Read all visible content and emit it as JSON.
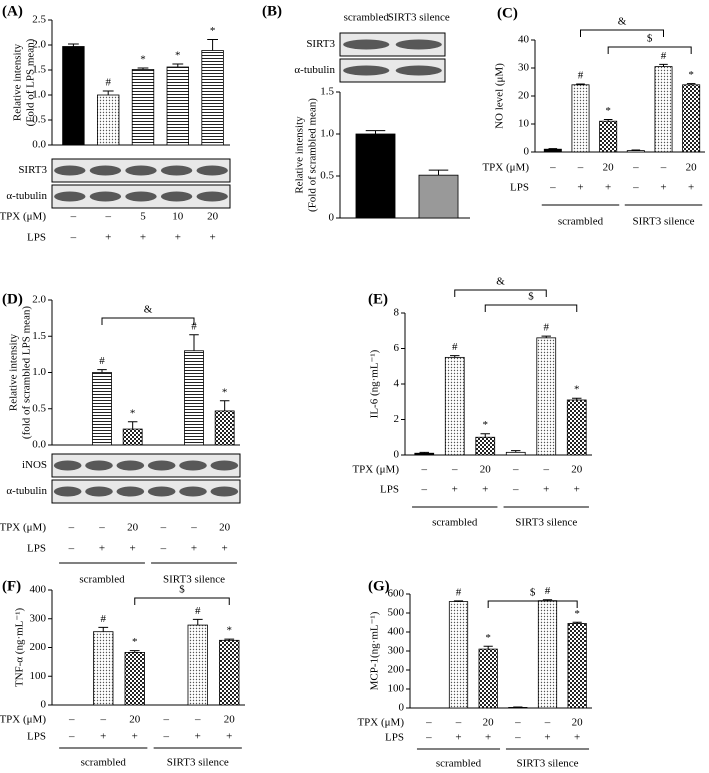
{
  "chart_data": [
    {
      "type": "bar",
      "panel": "(A)",
      "ylabel": [
        "Relative intensity",
        "(Fold of LPS mean)"
      ],
      "values": [
        1.97,
        1.0,
        1.51,
        1.56,
        1.89
      ],
      "errors": [
        0.05,
        0.08,
        0.03,
        0.06,
        0.22
      ],
      "annotations": [
        null,
        "#",
        "*",
        "*",
        "*"
      ],
      "fills": [
        "black",
        "dots",
        "lines",
        "lines",
        "lines"
      ],
      "ylim": [
        0,
        2.5
      ],
      "yticks": [
        {
          "value": 0,
          "label": "0.0"
        },
        0.5,
        {
          "value": 1,
          "label": "1.0"
        },
        1.5,
        {
          "value": 2,
          "label": "2.0"
        },
        2.5
      ],
      "blots": [
        "SIRT3",
        "α-tubulin"
      ],
      "conditions": [
        {
          "label": "TPX (μM)",
          "values": [
            "–",
            "–",
            "5",
            "10",
            "20"
          ]
        },
        {
          "label": "LPS",
          "values": [
            "–",
            "+",
            "+",
            "+",
            "+"
          ]
        }
      ]
    },
    {
      "type": "bar",
      "panel": "(B)",
      "ylabel": [
        "Relative intensity",
        "(Fold of scrambled mean)"
      ],
      "values": [
        1.0,
        0.51
      ],
      "errors": [
        0.04,
        0.06
      ],
      "fills": [
        "black",
        "gray"
      ],
      "ylim": [
        0,
        1.5
      ],
      "yticks": [
        0,
        0.5,
        {
          "value": 1,
          "label": "1.0"
        },
        1.5
      ],
      "blot_header": [
        "scrambled",
        "SIRT3 silence"
      ],
      "blots": [
        "SIRT3",
        "α-tubulin"
      ]
    },
    {
      "type": "bar",
      "panel": "(C)",
      "ylabel": [
        "NO level (μM)"
      ],
      "values": [
        1,
        24,
        11,
        0.5,
        30.5,
        24
      ],
      "errors": [
        0.2,
        0.3,
        0.6,
        0.2,
        0.8,
        0.4
      ],
      "annotations": [
        null,
        "#",
        "*",
        null,
        "#",
        "*"
      ],
      "fills": [
        "black",
        "dots",
        "check",
        "white",
        "dots",
        "check"
      ],
      "ylim": [
        0,
        40
      ],
      "yticks": [
        0,
        10,
        20,
        30,
        40
      ],
      "brackets": [
        {
          "label": "&",
          "bars": [
            1,
            4
          ]
        },
        {
          "label": "$",
          "bars": [
            2,
            5
          ]
        }
      ],
      "conditions": [
        {
          "label": "TPX (μM)",
          "values": [
            "–",
            "–",
            "20",
            "–",
            "–",
            "20"
          ]
        },
        {
          "label": "LPS",
          "values": [
            "–",
            "+",
            "+",
            "–",
            "+",
            "+"
          ]
        }
      ],
      "groups": [
        "scrambled",
        "SIRT3 silence"
      ]
    },
    {
      "type": "bar",
      "panel": "(D)",
      "ylabel": [
        "Relative intensity",
        "(fold of scrambled LPS mean)"
      ],
      "values": [
        0,
        1.0,
        0.22,
        0,
        1.3,
        0.47
      ],
      "errors": [
        null,
        0.04,
        0.1,
        null,
        0.22,
        0.14
      ],
      "annotations": [
        null,
        "#",
        "*",
        null,
        "#",
        "*"
      ],
      "fills": [
        "white",
        "lines",
        "check",
        "white",
        "lines",
        "check"
      ],
      "ylim": [
        0,
        2
      ],
      "yticks": [
        {
          "value": 0,
          "label": "0.0"
        },
        0.5,
        {
          "value": 1,
          "label": "1.0"
        },
        1.5,
        {
          "value": 2,
          "label": "2.0"
        }
      ],
      "brackets": [
        {
          "label": "&",
          "bars": [
            1,
            4
          ]
        }
      ],
      "blots": [
        "iNOS",
        "α-tubulin"
      ],
      "conditions": [
        {
          "label": "TPX (μM)",
          "values": [
            "–",
            "–",
            "20",
            "–",
            "–",
            "20"
          ]
        },
        {
          "label": "LPS",
          "values": [
            "–",
            "+",
            "+",
            "–",
            "+",
            "+"
          ]
        }
      ],
      "groups": [
        "scrambled",
        "SIRT3 silence"
      ]
    },
    {
      "type": "bar",
      "panel": "(E)",
      "ylabel": [
        "IL-6 (ng·mL⁻¹)"
      ],
      "values": [
        0.1,
        5.5,
        1.0,
        0.15,
        6.6,
        3.1
      ],
      "errors": [
        0.05,
        0.1,
        0.2,
        0.1,
        0.1,
        0.1
      ],
      "annotations": [
        null,
        "#",
        "*",
        null,
        "#",
        "*"
      ],
      "fills": [
        "black",
        "dots",
        "check",
        "white",
        "dots",
        "check"
      ],
      "ylim": [
        0,
        8
      ],
      "yticks": [
        0,
        2,
        4,
        6,
        8
      ],
      "brackets": [
        {
          "label": "&",
          "bars": [
            1,
            4
          ]
        },
        {
          "label": "$",
          "bars": [
            2,
            5
          ]
        }
      ],
      "conditions": [
        {
          "label": "TPX (μM)",
          "values": [
            "–",
            "–",
            "20",
            "–",
            "–",
            "20"
          ]
        },
        {
          "label": "LPS",
          "values": [
            "–",
            "+",
            "+",
            "–",
            "+",
            "+"
          ]
        }
      ],
      "groups": [
        "scrambled",
        "SIRT3 silence"
      ]
    },
    {
      "type": "bar",
      "panel": "(F)",
      "ylabel": [
        "TNF-α (ng·mL⁻¹)"
      ],
      "values": [
        0,
        255,
        183,
        0,
        278,
        225
      ],
      "errors": [
        null,
        15,
        6,
        null,
        20,
        4
      ],
      "annotations": [
        null,
        "#",
        "*",
        null,
        "#",
        "*"
      ],
      "fills": [
        "white",
        "dots",
        "check",
        "white",
        "dots",
        "check"
      ],
      "ylim": [
        0,
        400
      ],
      "yticks": [
        0,
        100,
        200,
        300,
        400
      ],
      "brackets": [
        {
          "label": "$",
          "bars": [
            2,
            5
          ]
        }
      ],
      "conditions": [
        {
          "label": "TPX (μM)",
          "values": [
            "–",
            "–",
            "20",
            "–",
            "–",
            "20"
          ]
        },
        {
          "label": "LPS",
          "values": [
            "–",
            "+",
            "+",
            "–",
            "+",
            "+"
          ]
        }
      ],
      "groups": [
        "scrambled",
        "SIRT3 silence"
      ]
    },
    {
      "type": "bar",
      "panel": "(G)",
      "ylabel": [
        "MCP-1(ng·mL⁻¹)"
      ],
      "values": [
        0,
        560,
        310,
        3,
        565,
        445
      ],
      "errors": [
        null,
        4,
        15,
        2,
        5,
        6
      ],
      "annotations": [
        null,
        "#",
        "*",
        null,
        "#",
        "*"
      ],
      "fills": [
        "white",
        "dots",
        "check",
        "white",
        "dots",
        "check"
      ],
      "ylim": [
        0,
        600
      ],
      "yticks": [
        0,
        100,
        200,
        300,
        400,
        500,
        600
      ],
      "brackets": [
        {
          "label": "$",
          "bars": [
            2,
            5
          ]
        }
      ],
      "conditions": [
        {
          "label": "TPX (μM)",
          "values": [
            "–",
            "–",
            "20",
            "–",
            "–",
            "20"
          ]
        },
        {
          "label": "LPS",
          "values": [
            "–",
            "+",
            "+",
            "–",
            "+",
            "+"
          ]
        }
      ],
      "groups": [
        "scrambled",
        "SIRT3 silence"
      ]
    }
  ]
}
